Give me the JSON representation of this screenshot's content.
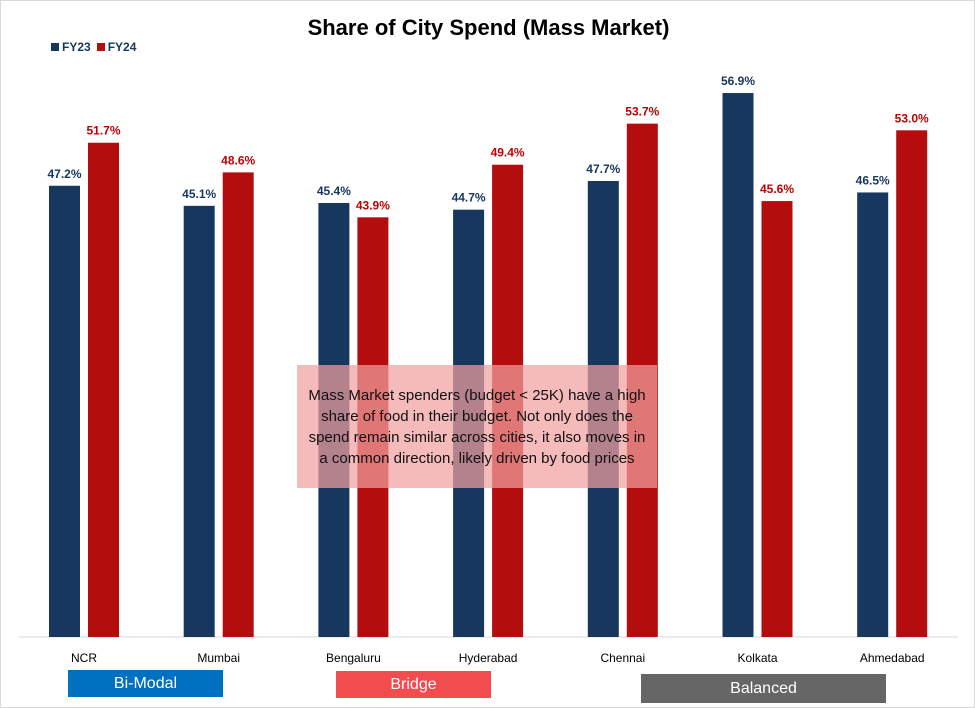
{
  "chart_data": {
    "type": "bar",
    "title": "Share of City Spend (Mass Market)",
    "categories": [
      "NCR",
      "Mumbai",
      "Bengaluru",
      "Hyderabad",
      "Chennai",
      "Kolkata",
      "Ahmedabad"
    ],
    "series": [
      {
        "name": "FY23",
        "color": "#17375e",
        "values": [
          47.2,
          45.1,
          45.4,
          44.7,
          47.7,
          56.9,
          46.5
        ],
        "labels": [
          "47.2%",
          "45.1%",
          "45.4%",
          "44.7%",
          "47.7%",
          "56.9%",
          "46.5%"
        ]
      },
      {
        "name": "FY24",
        "color": "#b40d0d",
        "values": [
          51.7,
          48.6,
          43.9,
          49.4,
          53.7,
          45.6,
          53.0
        ],
        "labels": [
          "51.7%",
          "48.6%",
          "43.9%",
          "49.4%",
          "53.7%",
          "45.6%",
          "53.0%"
        ]
      }
    ],
    "ylim": [
      0,
      66
    ],
    "xlabel": "",
    "ylabel": "",
    "grid": false,
    "legend_position": "top-left",
    "annotation": "Mass Market spenders (budget < 25K) have a high share of food in their budget. Not only does the spend remain similar across cities, it also moves in a common direction, likely driven by food prices",
    "groups": [
      {
        "label": "Bi-Modal",
        "color": "#0070c0"
      },
      {
        "label": "Bridge",
        "color": "#f24c4f"
      },
      {
        "label": "Balanced",
        "color": "#666666"
      }
    ]
  }
}
